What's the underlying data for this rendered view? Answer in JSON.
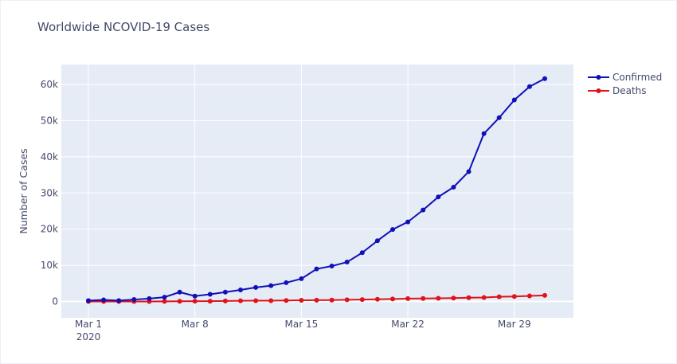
{
  "chart_data": {
    "type": "line",
    "title": "Worldwide NCOVID-19 Cases",
    "xlabel": "",
    "ylabel": "Number of Cases",
    "x": [
      "2020-03-01",
      "2020-03-02",
      "2020-03-03",
      "2020-03-04",
      "2020-03-05",
      "2020-03-06",
      "2020-03-07",
      "2020-03-08",
      "2020-03-09",
      "2020-03-10",
      "2020-03-11",
      "2020-03-12",
      "2020-03-13",
      "2020-03-14",
      "2020-03-15",
      "2020-03-16",
      "2020-03-17",
      "2020-03-18",
      "2020-03-19",
      "2020-03-20",
      "2020-03-21",
      "2020-03-22",
      "2020-03-23",
      "2020-03-24",
      "2020-03-25",
      "2020-03-26",
      "2020-03-27",
      "2020-03-28",
      "2020-03-29",
      "2020-03-30",
      "2020-03-31"
    ],
    "x_tick_labels": [
      "Mar 1",
      "Mar 8",
      "Mar 15",
      "Mar 22",
      "Mar 29"
    ],
    "x_tick_year": "2020",
    "y_tick_labels": [
      "0",
      "10k",
      "20k",
      "30k",
      "40k",
      "50k",
      "60k"
    ],
    "ylim": [
      -4500,
      65500
    ],
    "grid": true,
    "legend_position": "top-right",
    "series": [
      {
        "name": "Confirmed",
        "color": "#1010b8",
        "values": [
          250,
          450,
          250,
          550,
          800,
          1200,
          2600,
          1500,
          2000,
          2600,
          3200,
          3900,
          4400,
          5200,
          6300,
          9000,
          9800,
          10900,
          13500,
          16800,
          19900,
          22000,
          25300,
          28900,
          31600,
          35900,
          46400,
          50800,
          55700,
          59400,
          61600
        ]
      },
      {
        "name": "Deaths",
        "color": "#e0121b",
        "values": [
          0,
          10,
          10,
          20,
          20,
          40,
          60,
          100,
          100,
          150,
          200,
          220,
          240,
          280,
          330,
          360,
          400,
          470,
          540,
          620,
          700,
          800,
          850,
          900,
          950,
          1050,
          1100,
          1300,
          1400,
          1550,
          1700
        ]
      }
    ]
  }
}
